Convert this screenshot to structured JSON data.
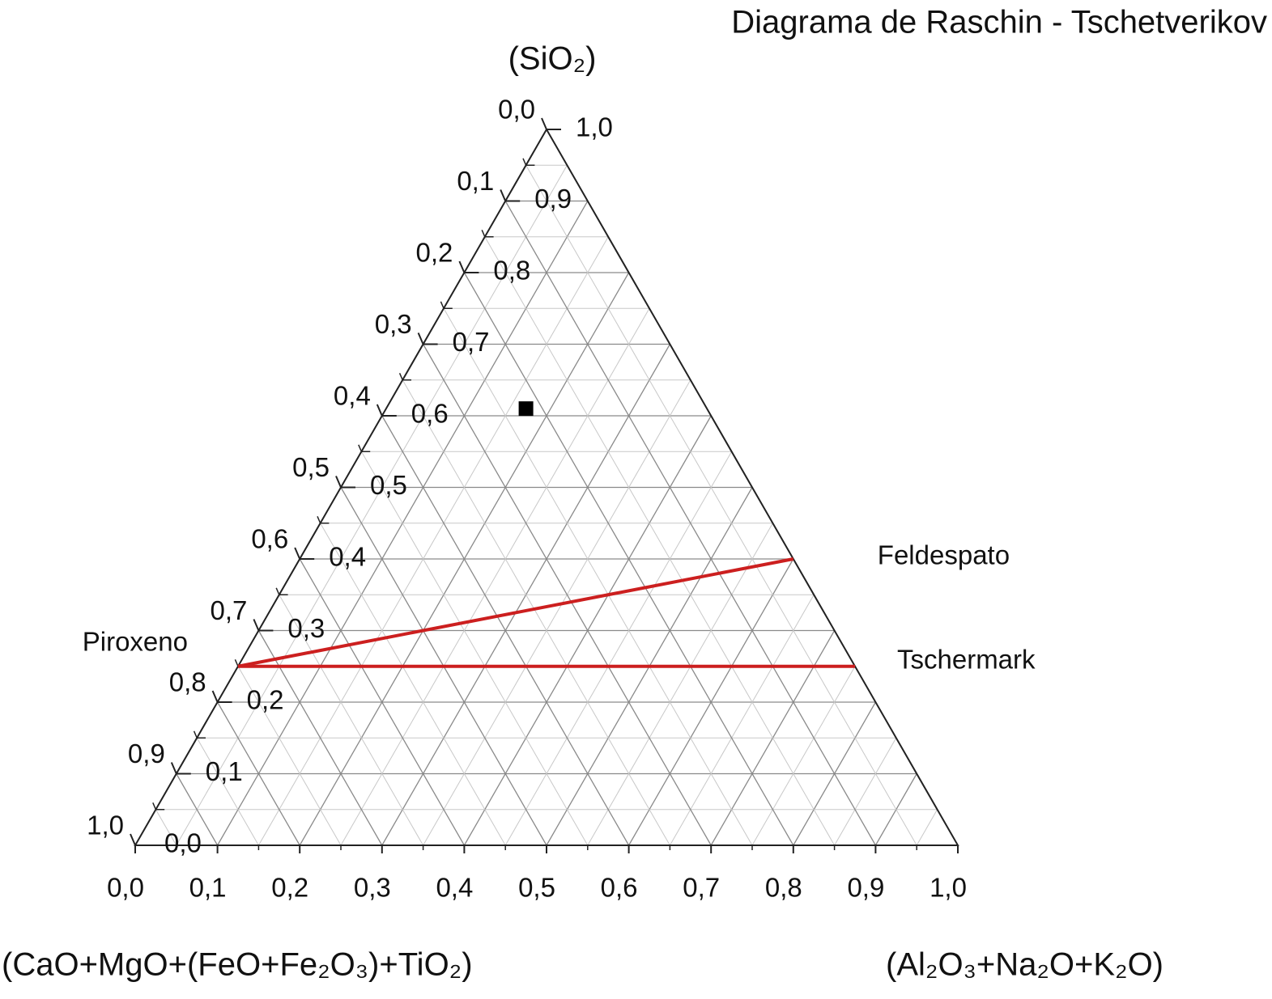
{
  "chart_data": {
    "type": "ternary",
    "title": "Diagrama de Raschin - Tschetverikov",
    "corner_labels": {
      "top": "(SiO₂)",
      "left": "(CaO+MgO+(FeO+Fe₂O₃)+TiO₂)",
      "right": "(Al₂O₃+Na₂O+K₂O)"
    },
    "ticks": {
      "bottom": [
        {
          "value": 0,
          "label": "0,0"
        },
        {
          "value": 0.1,
          "label": "0,1"
        },
        {
          "value": 0.2,
          "label": "0,2"
        },
        {
          "value": 0.3,
          "label": "0,3"
        },
        {
          "value": 0.4,
          "label": "0,4"
        },
        {
          "value": 0.5,
          "label": "0,5"
        },
        {
          "value": 0.6,
          "label": "0,6"
        },
        {
          "value": 0.7,
          "label": "0,7"
        },
        {
          "value": 0.8,
          "label": "0,8"
        },
        {
          "value": 0.9,
          "label": "0,9"
        },
        {
          "value": 1,
          "label": "1,0"
        }
      ],
      "right": [
        {
          "value": 0,
          "label": "0,0"
        },
        {
          "value": 0.1,
          "label": "0,1"
        },
        {
          "value": 0.2,
          "label": "0,2"
        },
        {
          "value": 0.3,
          "label": "0,3"
        },
        {
          "value": 0.4,
          "label": "0,4"
        },
        {
          "value": 0.5,
          "label": "0,5"
        },
        {
          "value": 0.6,
          "label": "0,6"
        },
        {
          "value": 0.7,
          "label": "0,7"
        },
        {
          "value": 0.8,
          "label": "0,8"
        },
        {
          "value": 0.9,
          "label": "0,9"
        },
        {
          "value": 1,
          "label": "1,0"
        }
      ],
      "left": [
        {
          "value": 0,
          "label": "0,0"
        },
        {
          "value": 0.1,
          "label": "0,1"
        },
        {
          "value": 0.2,
          "label": "0,2"
        },
        {
          "value": 0.3,
          "label": "0,3"
        },
        {
          "value": 0.4,
          "label": "0,4"
        },
        {
          "value": 0.5,
          "label": "0,5"
        },
        {
          "value": 0.6,
          "label": "0,6"
        },
        {
          "value": 0.7,
          "label": "0,7"
        },
        {
          "value": 0.8,
          "label": "0,8"
        },
        {
          "value": 0.9,
          "label": "0,9"
        },
        {
          "value": 1,
          "label": "1,0"
        }
      ]
    },
    "grid": true,
    "end_members": [
      {
        "label": "Piroxeno",
        "top": 0.25,
        "left": 0.75,
        "right": 0
      },
      {
        "label": "Feldespato",
        "top": 0.4,
        "left": 0,
        "right": 0.6
      },
      {
        "label": "Tschermark",
        "top": 0.25,
        "left": 0,
        "right": 0.75
      }
    ],
    "line_color": "#cc1f1f",
    "samples": [
      {
        "top": 0.61,
        "left": 0.22,
        "right": 0.17
      }
    ],
    "sample_color": "#000000"
  }
}
